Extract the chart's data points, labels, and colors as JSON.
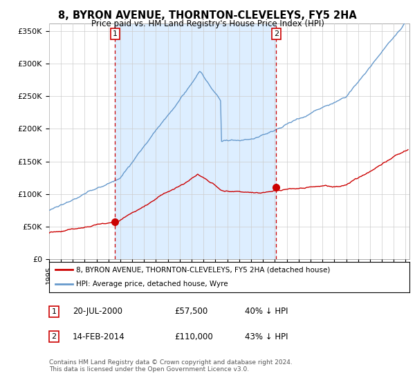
{
  "title": "8, BYRON AVENUE, THORNTON-CLEVELEYS, FY5 2HA",
  "subtitle": "Price paid vs. HM Land Registry's House Price Index (HPI)",
  "ylabel_ticks": [
    "£0",
    "£50K",
    "£100K",
    "£150K",
    "£200K",
    "£250K",
    "£300K",
    "£350K"
  ],
  "ytick_values": [
    0,
    50000,
    100000,
    150000,
    200000,
    250000,
    300000,
    350000
  ],
  "ylim": [
    0,
    362000
  ],
  "xlim_start": 1995.0,
  "xlim_end": 2025.3,
  "red_line_color": "#cc0000",
  "blue_line_color": "#6699cc",
  "shade_color": "#ddeeff",
  "vline_color": "#cc0000",
  "marker1_x": 2000.55,
  "marker1_y": 57500,
  "marker2_x": 2014.12,
  "marker2_y": 110000,
  "legend_entries": [
    "8, BYRON AVENUE, THORNTON-CLEVELEYS, FY5 2HA (detached house)",
    "HPI: Average price, detached house, Wyre"
  ],
  "table_rows": [
    [
      "1",
      "20-JUL-2000",
      "£57,500",
      "40% ↓ HPI"
    ],
    [
      "2",
      "14-FEB-2014",
      "£110,000",
      "43% ↓ HPI"
    ]
  ],
  "footnote": "Contains HM Land Registry data © Crown copyright and database right 2024.\nThis data is licensed under the Open Government Licence v3.0.",
  "background_color": "#ffffff",
  "plot_bg_color": "#ffffff",
  "grid_color": "#cccccc"
}
